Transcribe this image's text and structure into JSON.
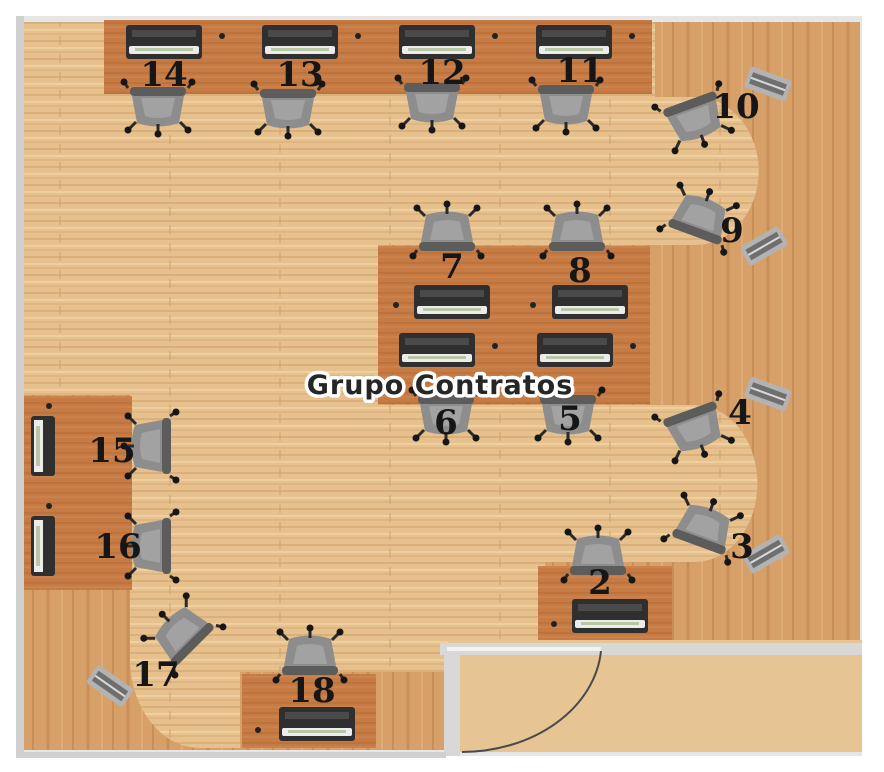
{
  "plan": {
    "group_label": "Grupo Contratos",
    "colors": {
      "floor_light": "#e6c08d",
      "floor_dark": "#d29d63",
      "desk": "#c67b44",
      "monitor": "#3a3a3a",
      "chair": "#8d8d8d",
      "wall": "#cfcfcf"
    },
    "seats": [
      {
        "number": "2"
      },
      {
        "number": "3"
      },
      {
        "number": "4"
      },
      {
        "number": "5"
      },
      {
        "number": "6"
      },
      {
        "number": "7"
      },
      {
        "number": "8"
      },
      {
        "number": "9"
      },
      {
        "number": "10"
      },
      {
        "number": "11"
      },
      {
        "number": "12"
      },
      {
        "number": "13"
      },
      {
        "number": "14"
      },
      {
        "number": "15"
      },
      {
        "number": "16"
      },
      {
        "number": "17"
      },
      {
        "number": "18"
      }
    ]
  }
}
